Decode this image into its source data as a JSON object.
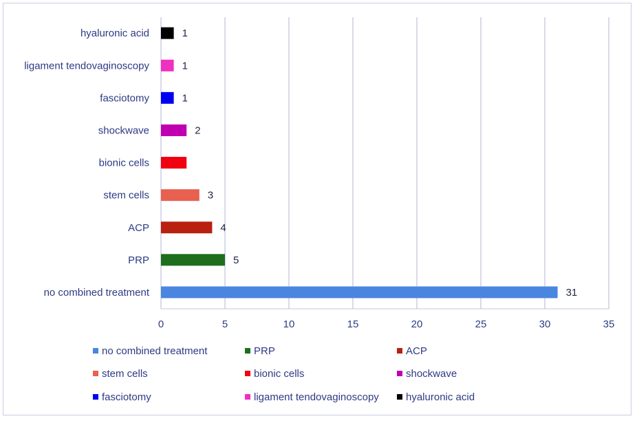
{
  "chart_data": {
    "type": "bar",
    "orientation": "horizontal",
    "title": "",
    "xlabel": "",
    "ylabel": "",
    "xlim": [
      0,
      35
    ],
    "x_ticks": [
      "0",
      "5",
      "10",
      "15",
      "20",
      "25",
      "30",
      "35"
    ],
    "x_tick_values": [
      0,
      5,
      10,
      15,
      20,
      25,
      30,
      35
    ],
    "grid": "vertical",
    "legend_position": "bottom",
    "categories": [
      "no combined treatment",
      "PRP",
      "ACP",
      "stem cells",
      "bionic cells",
      "shockwave",
      "fasciotomy",
      "ligament tendovaginoscopy",
      "hyaluronic acid"
    ],
    "values": [
      31,
      5,
      4,
      3,
      2,
      2,
      1,
      1,
      1
    ],
    "data_labels": [
      "31",
      "5",
      "4",
      "3",
      "",
      "2",
      "1",
      "1",
      "1"
    ],
    "colors": [
      "#4a86e0",
      "#1e6e1e",
      "#b82010",
      "#e86050",
      "#f00010",
      "#c000b0",
      "#0000f0",
      "#f030c0",
      "#000000"
    ],
    "legend": [
      "no combined treatment",
      "PRP",
      "ACP",
      "stem cells",
      "bionic cells",
      "shockwave",
      "fasciotomy",
      "ligament tendovaginoscopy",
      "hyaluronic acid"
    ]
  },
  "style": {
    "grid_color": "#c4c7df",
    "axis_color": "#c4c7df",
    "border_color": "#c9cde4"
  }
}
